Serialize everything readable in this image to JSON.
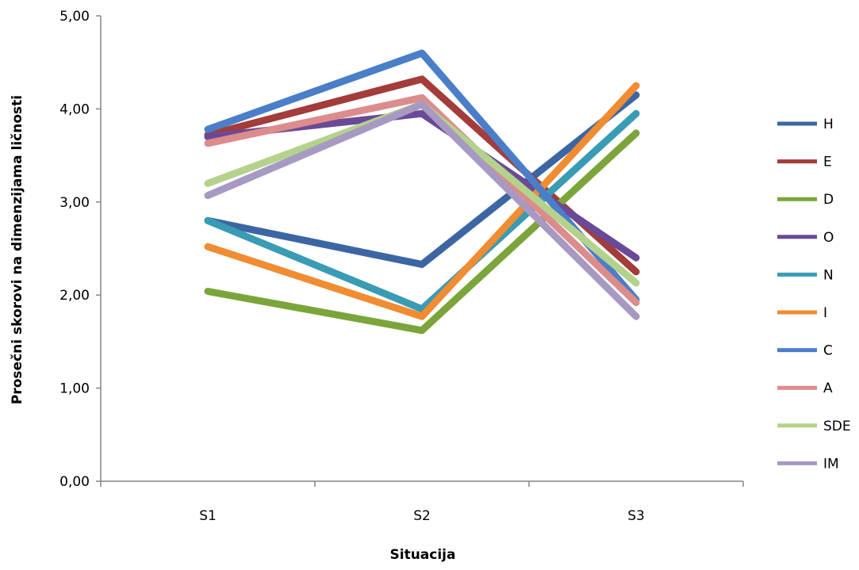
{
  "chart_data": {
    "type": "line",
    "xlabel": "Situacija",
    "ylabel": "Prosečni skorovi na dimenzijama ličnosti",
    "categories": [
      "S1",
      "S2",
      "S3"
    ],
    "ylim": [
      0,
      5
    ],
    "ytick_labels": [
      "0,00",
      "1,00",
      "2,00",
      "3,00",
      "4,00",
      "5,00"
    ],
    "ytick_values": [
      0,
      1,
      2,
      3,
      4,
      5
    ],
    "grid": false,
    "legend_position": "right",
    "series": [
      {
        "name": "H",
        "color": "#3c66a3",
        "values": [
          2.8,
          2.33,
          4.15
        ]
      },
      {
        "name": "E",
        "color": "#a33c3a",
        "values": [
          3.72,
          4.32,
          2.25
        ]
      },
      {
        "name": "D",
        "color": "#7ba53a",
        "values": [
          2.04,
          1.62,
          3.74
        ]
      },
      {
        "name": "O",
        "color": "#6a4a96",
        "values": [
          3.7,
          3.95,
          2.4
        ]
      },
      {
        "name": "N",
        "color": "#3a9bb4",
        "values": [
          2.8,
          1.85,
          3.95
        ]
      },
      {
        "name": "I",
        "color": "#f08c32",
        "values": [
          2.52,
          1.77,
          4.25
        ]
      },
      {
        "name": "C",
        "color": "#4a7ec8",
        "values": [
          3.78,
          4.6,
          1.95
        ]
      },
      {
        "name": "A",
        "color": "#dc8c8c",
        "values": [
          3.63,
          4.12,
          1.92
        ]
      },
      {
        "name": "SDE",
        "color": "#b4d28c",
        "values": [
          3.2,
          4.05,
          2.13
        ]
      },
      {
        "name": "IM",
        "color": "#a899c2",
        "values": [
          3.07,
          4.05,
          1.77
        ]
      }
    ]
  }
}
